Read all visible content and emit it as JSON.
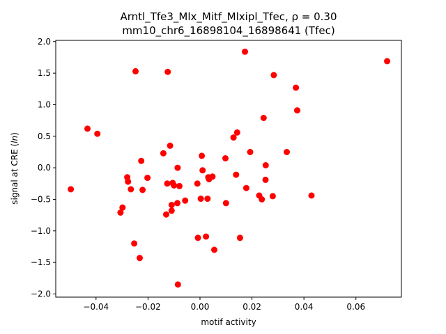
{
  "chart_data": {
    "type": "scatter",
    "title_line1": "Arntl_Tfe3_Mlx_Mitf_Mlxipl_Tfec, ",
    "title_rho": "ρ = 0.30",
    "title_line2": "mm10_chr6_16898104_16898641 (Tfec)",
    "xlabel": "motif activity",
    "ylabel_prefix": "signal at CRE (",
    "ylabel_italic": "ln",
    "ylabel_suffix": ")",
    "xlim": [
      -0.0555,
      0.0775
    ],
    "ylim": [
      -2.05,
      2.02
    ],
    "xticks": [
      -0.04,
      -0.02,
      0.0,
      0.02,
      0.04,
      0.06
    ],
    "xtick_labels": [
      "−0.04",
      "−0.02",
      "0.00",
      "0.02",
      "0.04",
      "0.06"
    ],
    "yticks": [
      -2.0,
      -1.5,
      -1.0,
      -0.5,
      0.0,
      0.5,
      1.0,
      1.5,
      2.0
    ],
    "ytick_labels": [
      "−2.0",
      "−1.5",
      "−1.0",
      "−0.5",
      "0.0",
      "0.5",
      "1.0",
      "1.5",
      "2.0"
    ],
    "marker_color": "#ff0000",
    "points": [
      {
        "x": -0.0497,
        "y": -0.34
      },
      {
        "x": -0.0433,
        "y": 0.62
      },
      {
        "x": -0.0395,
        "y": 0.54
      },
      {
        "x": -0.0306,
        "y": -0.71
      },
      {
        "x": -0.0298,
        "y": -0.63
      },
      {
        "x": -0.028,
        "y": -0.15
      },
      {
        "x": -0.0277,
        "y": -0.22
      },
      {
        "x": -0.0266,
        "y": -0.34
      },
      {
        "x": -0.0253,
        "y": -1.2
      },
      {
        "x": -0.0248,
        "y": 1.53
      },
      {
        "x": -0.0232,
        "y": -1.43
      },
      {
        "x": -0.0226,
        "y": 0.11
      },
      {
        "x": -0.0221,
        "y": -0.35
      },
      {
        "x": -0.0202,
        "y": -0.16
      },
      {
        "x": -0.0141,
        "y": 0.23
      },
      {
        "x": -0.013,
        "y": -0.74
      },
      {
        "x": -0.0126,
        "y": -0.25
      },
      {
        "x": -0.0124,
        "y": 1.52
      },
      {
        "x": -0.0115,
        "y": 0.35
      },
      {
        "x": -0.0109,
        "y": -0.68
      },
      {
        "x": -0.0109,
        "y": -0.59
      },
      {
        "x": -0.0105,
        "y": -0.24
      },
      {
        "x": -0.01,
        "y": -0.28
      },
      {
        "x": -0.0087,
        "y": -0.56
      },
      {
        "x": -0.0086,
        "y": 0.0
      },
      {
        "x": -0.0085,
        "y": -1.85
      },
      {
        "x": -0.0079,
        "y": -0.29
      },
      {
        "x": -0.0057,
        "y": -0.52
      },
      {
        "x": -0.001,
        "y": -0.25
      },
      {
        "x": -0.0008,
        "y": -1.11
      },
      {
        "x": 0.0003,
        "y": -0.49
      },
      {
        "x": 0.0007,
        "y": 0.19
      },
      {
        "x": 0.001,
        "y": -0.04
      },
      {
        "x": 0.0023,
        "y": -1.09
      },
      {
        "x": 0.0029,
        "y": -0.49
      },
      {
        "x": 0.0032,
        "y": -0.15
      },
      {
        "x": 0.0035,
        "y": -0.18
      },
      {
        "x": 0.0048,
        "y": -0.14
      },
      {
        "x": 0.0055,
        "y": -1.3
      },
      {
        "x": 0.0098,
        "y": 0.15
      },
      {
        "x": 0.01,
        "y": -0.56
      },
      {
        "x": 0.0129,
        "y": 0.48
      },
      {
        "x": 0.0139,
        "y": -0.11
      },
      {
        "x": 0.0143,
        "y": 0.56
      },
      {
        "x": 0.0154,
        "y": -1.11
      },
      {
        "x": 0.0173,
        "y": 1.84
      },
      {
        "x": 0.0178,
        "y": -0.32
      },
      {
        "x": 0.0193,
        "y": 0.25
      },
      {
        "x": 0.0228,
        "y": -0.44
      },
      {
        "x": 0.0238,
        "y": -0.5
      },
      {
        "x": 0.0245,
        "y": 0.79
      },
      {
        "x": 0.0252,
        "y": -0.19
      },
      {
        "x": 0.0253,
        "y": 0.04
      },
      {
        "x": 0.028,
        "y": -0.45
      },
      {
        "x": 0.0284,
        "y": 1.47
      },
      {
        "x": 0.0334,
        "y": 0.25
      },
      {
        "x": 0.0369,
        "y": 1.27
      },
      {
        "x": 0.0374,
        "y": 0.91
      },
      {
        "x": 0.0429,
        "y": -0.44
      },
      {
        "x": 0.072,
        "y": 1.69
      }
    ]
  }
}
